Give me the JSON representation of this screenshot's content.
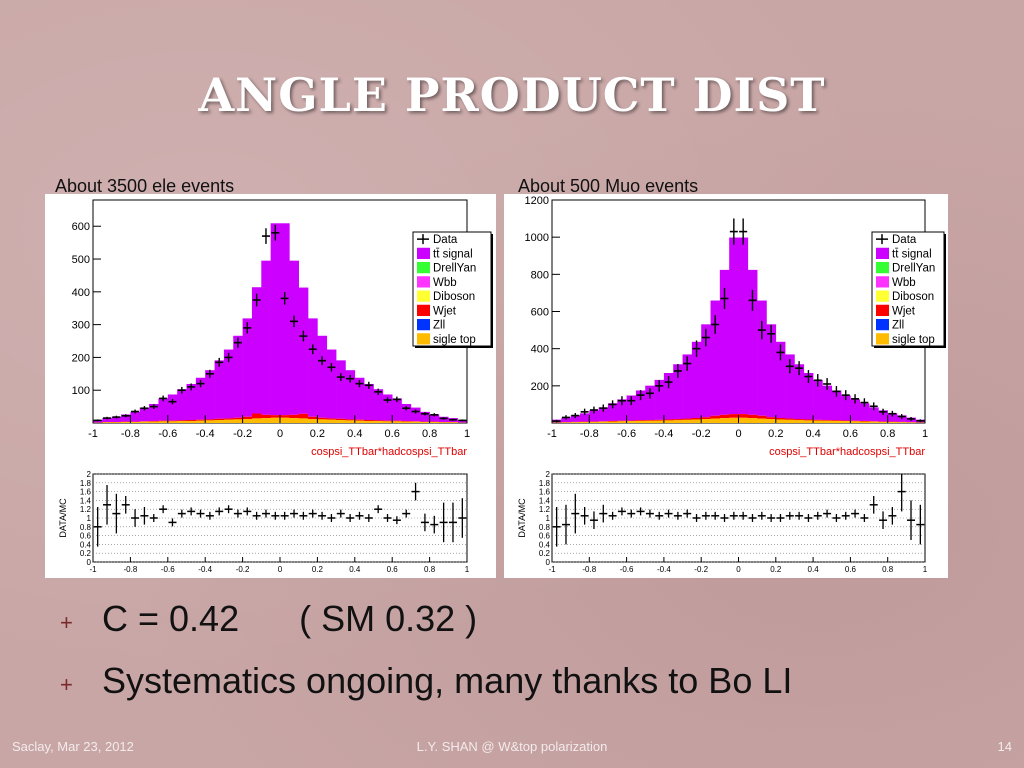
{
  "slide": {
    "title": "ANGLE PRODUCT DIST",
    "bullets": [
      "C = 0.42      ( SM 0.32 )",
      "Systematics ongoing, many thanks to Bo LI"
    ],
    "bullet_marker": "+",
    "footer": {
      "left": "Saclay, Mar 23, 2012",
      "center": "L.Y. SHAN @ W&top polarization",
      "right": "14"
    }
  },
  "legend_labels": [
    "Data",
    "tt̄ signal",
    "DrellYan",
    "Wbb",
    "Diboson",
    "Wjet",
    "Zll",
    "sigle top"
  ],
  "colors": {
    "data": "#000000",
    "signal": "#cc00ff",
    "DrellYan": "#33ff33",
    "Wbb": "#ff33ff",
    "Diboson": "#ffff33",
    "Wjet": "#ff0000",
    "Zll": "#0033ff",
    "sigletop": "#ffbb00"
  },
  "chart_data": [
    {
      "type": "bar",
      "caption": "About 3500  ele events",
      "xlabel": "cospsi_TTbar*hadcospsi_TTbar",
      "ylabel": "",
      "xlim": [
        -1,
        1
      ],
      "ylim": [
        0,
        680
      ],
      "yticks": [
        100,
        200,
        300,
        400,
        500,
        600
      ],
      "xticks": [
        -1,
        -0.8,
        -0.6,
        -0.4,
        -0.2,
        0,
        0.2,
        0.4,
        0.6,
        0.8,
        1
      ],
      "legend_position": "top-right",
      "bin_edges": [
        -1,
        -0.95,
        -0.9,
        -0.85,
        -0.8,
        -0.75,
        -0.7,
        -0.65,
        -0.6,
        -0.55,
        -0.5,
        -0.45,
        -0.4,
        -0.35,
        -0.3,
        -0.25,
        -0.2,
        -0.15,
        -0.1,
        -0.05,
        0,
        0.05,
        0.1,
        0.15,
        0.2,
        0.25,
        0.3,
        0.35,
        0.4,
        0.45,
        0.5,
        0.55,
        0.6,
        0.65,
        0.7,
        0.75,
        0.8,
        0.85,
        0.9,
        0.95,
        1
      ],
      "series": [
        {
          "name": "tt̄ signal",
          "values": [
            8,
            12,
            16,
            22,
            30,
            42,
            52,
            68,
            80,
            95,
            110,
            128,
            150,
            178,
            210,
            250,
            300,
            385,
            470,
            585,
            585,
            470,
            385,
            300,
            250,
            210,
            178,
            150,
            128,
            110,
            95,
            80,
            68,
            52,
            42,
            30,
            22,
            16,
            12,
            8
          ]
        },
        {
          "name": "sigle top",
          "values": [
            1,
            2,
            2,
            3,
            3,
            4,
            4,
            5,
            5,
            6,
            6,
            7,
            8,
            9,
            10,
            11,
            12,
            14,
            15,
            16,
            16,
            15,
            14,
            12,
            11,
            10,
            9,
            8,
            7,
            6,
            6,
            5,
            5,
            4,
            4,
            3,
            3,
            2,
            2,
            1
          ]
        },
        {
          "name": "Wjet",
          "values": [
            0,
            1,
            1,
            1,
            1,
            1,
            2,
            2,
            2,
            2,
            3,
            3,
            3,
            4,
            4,
            5,
            7,
            15,
            10,
            8,
            8,
            10,
            14,
            7,
            5,
            4,
            4,
            3,
            3,
            3,
            2,
            2,
            2,
            2,
            1,
            1,
            1,
            1,
            1,
            0
          ]
        },
        {
          "name": "Data",
          "values": [
            8,
            15,
            18,
            22,
            35,
            45,
            50,
            75,
            65,
            100,
            110,
            120,
            150,
            185,
            200,
            245,
            290,
            375,
            570,
            580,
            380,
            310,
            265,
            225,
            190,
            170,
            140,
            135,
            120,
            115,
            95,
            70,
            72,
            45,
            35,
            28,
            25,
            14,
            10,
            8
          ]
        }
      ],
      "ratio": {
        "ylim": [
          0,
          2
        ],
        "yticks": [
          0,
          0.2,
          0.4,
          0.6,
          0.8,
          1,
          1.2,
          1.4,
          1.6,
          1.8,
          2
        ],
        "ylabel": "DATA/MC",
        "values": [
          0.8,
          1.3,
          1.1,
          1.3,
          1.0,
          1.05,
          1.0,
          1.2,
          0.9,
          1.1,
          1.15,
          1.1,
          1.05,
          1.15,
          1.2,
          1.1,
          1.15,
          1.05,
          1.1,
          1.05,
          1.05,
          1.1,
          1.05,
          1.1,
          1.05,
          1.0,
          1.1,
          1.0,
          1.05,
          1.0,
          1.2,
          1.0,
          0.95,
          1.1,
          1.6,
          0.9,
          0.85,
          0.9,
          0.9,
          1.0
        ]
      }
    },
    {
      "type": "bar",
      "caption": "About 500 Muo events",
      "xlabel": "cospsi_TTbar*hadcospsi_TTbar",
      "ylabel": "",
      "xlim": [
        -1,
        1
      ],
      "ylim": [
        0,
        1200
      ],
      "yticks": [
        200,
        400,
        600,
        800,
        1000,
        1200
      ],
      "xticks": [
        -1,
        -0.8,
        -0.6,
        -0.4,
        -0.2,
        0,
        0.2,
        0.4,
        0.6,
        0.8,
        1
      ],
      "legend_position": "top-right",
      "bin_edges": [
        -1,
        -0.95,
        -0.9,
        -0.85,
        -0.8,
        -0.75,
        -0.7,
        -0.65,
        -0.6,
        -0.55,
        -0.5,
        -0.45,
        -0.4,
        -0.35,
        -0.3,
        -0.25,
        -0.2,
        -0.15,
        -0.1,
        -0.05,
        0,
        0.05,
        0.1,
        0.15,
        0.2,
        0.25,
        0.3,
        0.35,
        0.4,
        0.45,
        0.5,
        0.55,
        0.6,
        0.65,
        0.7,
        0.75,
        0.8,
        0.85,
        0.9,
        0.95,
        1
      ],
      "series": [
        {
          "name": "tt̄ signal",
          "values": [
            15,
            25,
            35,
            45,
            60,
            75,
            95,
            115,
            135,
            160,
            185,
            215,
            250,
            295,
            345,
            410,
            500,
            620,
            780,
            950,
            950,
            780,
            620,
            500,
            410,
            345,
            295,
            250,
            215,
            185,
            160,
            135,
            115,
            95,
            75,
            60,
            45,
            35,
            25,
            15
          ]
        },
        {
          "name": "sigle top",
          "values": [
            2,
            3,
            4,
            5,
            6,
            7,
            8,
            9,
            10,
            11,
            12,
            13,
            14,
            15,
            17,
            19,
            21,
            24,
            26,
            28,
            28,
            26,
            24,
            21,
            19,
            17,
            15,
            14,
            13,
            12,
            11,
            10,
            9,
            8,
            7,
            6,
            5,
            4,
            3,
            2
          ]
        },
        {
          "name": "Wjet",
          "values": [
            1,
            1,
            2,
            2,
            2,
            2,
            3,
            3,
            3,
            4,
            4,
            4,
            5,
            6,
            7,
            8,
            10,
            15,
            18,
            20,
            20,
            18,
            15,
            10,
            8,
            7,
            6,
            5,
            4,
            4,
            4,
            3,
            3,
            3,
            2,
            2,
            2,
            2,
            1,
            1
          ]
        },
        {
          "name": "Data",
          "values": [
            10,
            30,
            40,
            60,
            70,
            80,
            100,
            120,
            120,
            150,
            160,
            200,
            220,
            280,
            320,
            400,
            460,
            530,
            670,
            1030,
            1030,
            660,
            500,
            480,
            380,
            305,
            295,
            250,
            230,
            210,
            170,
            150,
            130,
            110,
            90,
            60,
            50,
            35,
            22,
            12
          ]
        }
      ],
      "ratio": {
        "ylim": [
          0,
          2
        ],
        "yticks": [
          0,
          0.2,
          0.4,
          0.6,
          0.8,
          1,
          1.2,
          1.4,
          1.6,
          1.8,
          2
        ],
        "ylabel": "DATA/MC",
        "values": [
          0.8,
          0.85,
          1.1,
          1.05,
          0.95,
          1.1,
          1.05,
          1.15,
          1.1,
          1.15,
          1.1,
          1.05,
          1.1,
          1.05,
          1.1,
          1.0,
          1.05,
          1.05,
          1.0,
          1.05,
          1.05,
          1.0,
          1.05,
          1.0,
          1.0,
          1.05,
          1.05,
          1.0,
          1.05,
          1.1,
          1.0,
          1.05,
          1.1,
          1.0,
          1.3,
          0.95,
          1.05,
          1.6,
          0.95,
          0.85
        ]
      }
    }
  ]
}
